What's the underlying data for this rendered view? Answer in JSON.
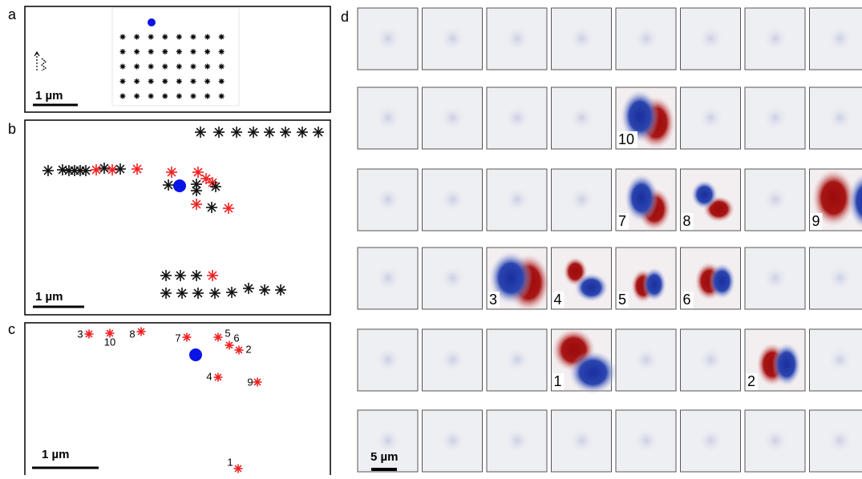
{
  "panels": {
    "a": {
      "label": "a",
      "scale_bar": "1 µm"
    },
    "b": {
      "label": "b",
      "scale_bar": "1 µm"
    },
    "c": {
      "label": "c",
      "scale_bar": "1 µm",
      "points": [
        "3",
        "10",
        "8",
        "7",
        "5",
        "6",
        "2",
        "4",
        "9",
        "1"
      ]
    },
    "d": {
      "label": "d",
      "scale_bar": "5 µm",
      "tiles": [
        [
          null,
          null,
          null,
          null,
          null,
          null,
          null,
          null
        ],
        [
          null,
          null,
          null,
          null,
          "10",
          null,
          null,
          null
        ],
        [
          null,
          null,
          null,
          null,
          "7",
          "8",
          null,
          "9"
        ],
        [
          null,
          null,
          "3",
          "4",
          "5",
          "6",
          null,
          null
        ],
        [
          null,
          null,
          null,
          "1",
          null,
          null,
          "2",
          null
        ],
        [
          null,
          null,
          null,
          null,
          null,
          null,
          null,
          null
        ]
      ]
    }
  }
}
